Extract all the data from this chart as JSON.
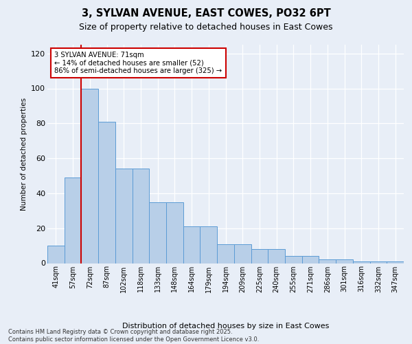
{
  "title_line1": "3, SYLVAN AVENUE, EAST COWES, PO32 6PT",
  "title_line2": "Size of property relative to detached houses in East Cowes",
  "xlabel": "Distribution of detached houses by size in East Cowes",
  "ylabel": "Number of detached properties",
  "categories": [
    "41sqm",
    "57sqm",
    "72sqm",
    "87sqm",
    "102sqm",
    "118sqm",
    "133sqm",
    "148sqm",
    "164sqm",
    "179sqm",
    "194sqm",
    "209sqm",
    "225sqm",
    "240sqm",
    "255sqm",
    "271sqm",
    "286sqm",
    "301sqm",
    "316sqm",
    "332sqm",
    "347sqm"
  ],
  "bar_values": [
    10,
    49,
    100,
    81,
    54,
    54,
    35,
    35,
    21,
    21,
    11,
    11,
    8,
    8,
    4,
    4,
    2,
    2,
    1,
    1,
    1
  ],
  "bar_color": "#b8cfe8",
  "bar_edge_color": "#5b9bd5",
  "vline_x": 2.0,
  "vline_color": "#cc0000",
  "annotation_text": "3 SYLVAN AVENUE: 71sqm\n← 14% of detached houses are smaller (52)\n86% of semi-detached houses are larger (325) →",
  "annotation_box_color": "#ffffff",
  "annotation_box_edge": "#cc0000",
  "ylim": [
    0,
    125
  ],
  "yticks": [
    0,
    20,
    40,
    60,
    80,
    100,
    120
  ],
  "footer_line1": "Contains HM Land Registry data © Crown copyright and database right 2025.",
  "footer_line2": "Contains public sector information licensed under the Open Government Licence v3.0.",
  "bg_color": "#e8eef7",
  "plot_bg_color": "#e8eef7"
}
